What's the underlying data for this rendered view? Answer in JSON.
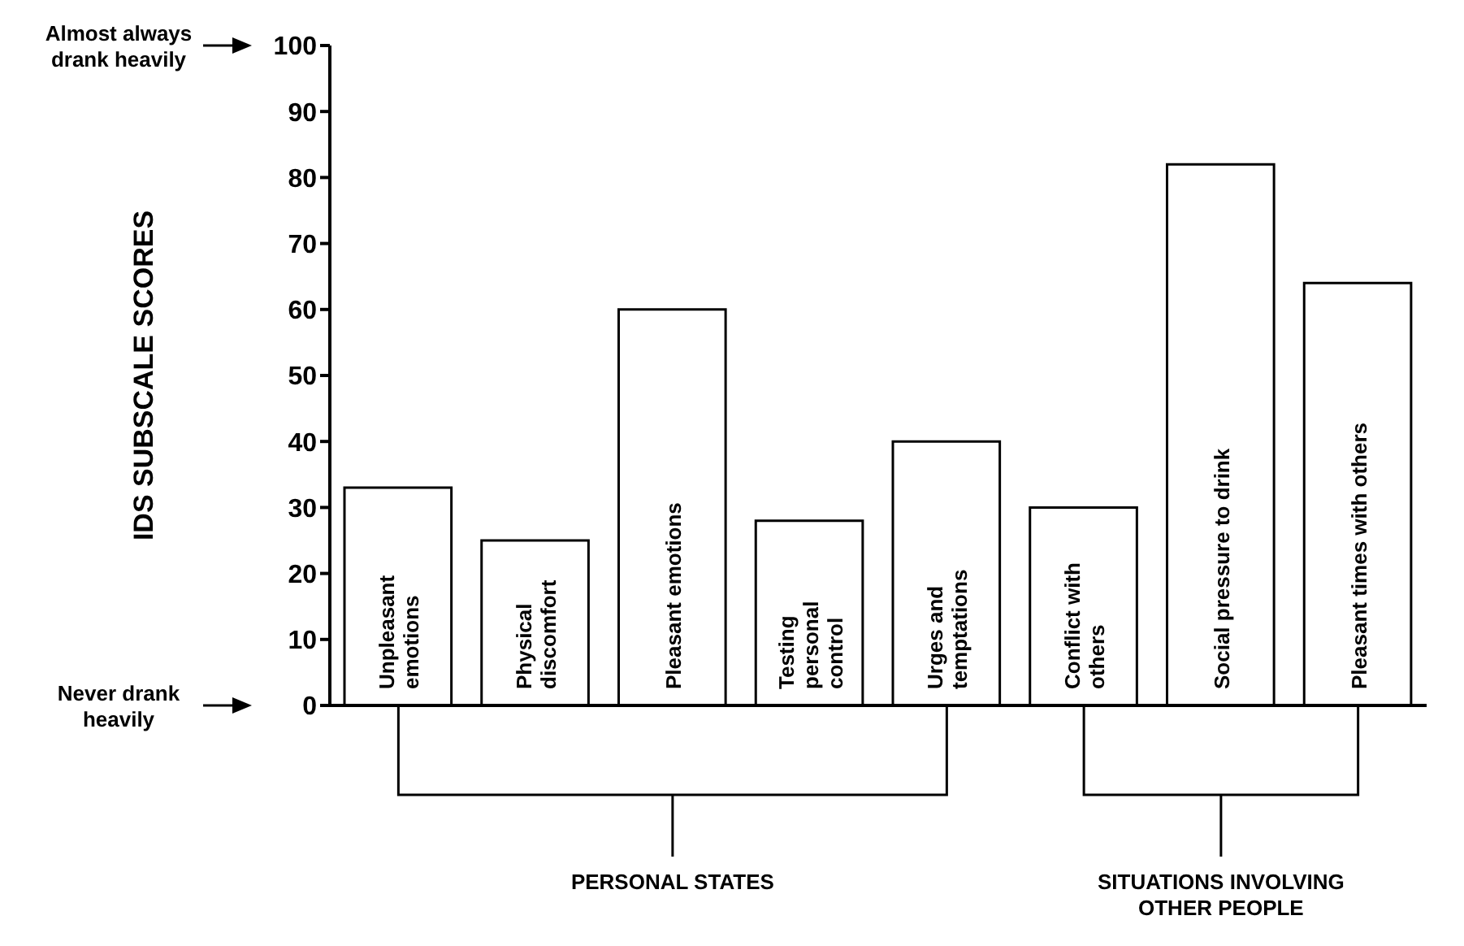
{
  "chart_data": {
    "type": "bar",
    "ylabel": "IDS SUBSCALE SCORES",
    "categories": [
      "Unpleasant emotions",
      "Physical discomfort",
      "Pleasant emotions",
      "Testing personal control",
      "Urges and temptations",
      "Conflict with others",
      "Social pressure to drink",
      "Pleasant times with others"
    ],
    "values": [
      33,
      25,
      60,
      28,
      40,
      30,
      82,
      64
    ],
    "color": "#ffffff",
    "ylim": [
      0,
      100
    ],
    "yticks": [
      0,
      10,
      20,
      30,
      40,
      50,
      60,
      70,
      80,
      90,
      100
    ],
    "grid": false,
    "legend": false,
    "annotations": [
      "Almost always drank heavily",
      "Never drank heavily",
      "PERSONAL STATES",
      "SITUATIONS INVOLVING OTHER PEOPLE"
    ]
  }
}
